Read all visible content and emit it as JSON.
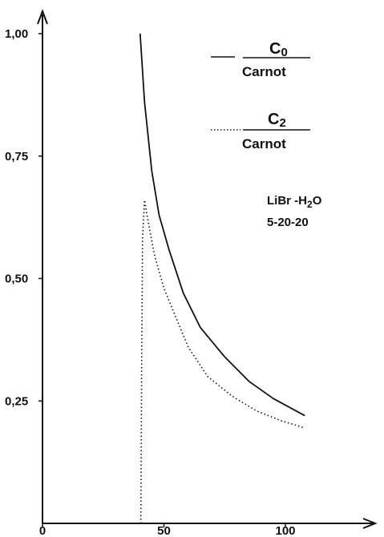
{
  "chart_data": {
    "type": "line",
    "title": "",
    "xlabel": "",
    "ylabel": "",
    "xlim": [
      0,
      110
    ],
    "ylim": [
      0,
      1.0
    ],
    "x_ticks": [
      {
        "value": 0,
        "label": "0"
      },
      {
        "value": 50,
        "label": "50"
      },
      {
        "value": 100,
        "label": "100"
      }
    ],
    "y_ticks": [
      {
        "value": 0.25,
        "label": "0,25"
      },
      {
        "value": 0.5,
        "label": "0,50"
      },
      {
        "value": 0.75,
        "label": "0,75"
      },
      {
        "value": 1.0,
        "label": "1,00"
      }
    ],
    "grid": false,
    "series": [
      {
        "name": "C0/Carnot",
        "style": "solid",
        "points": [
          [
            40.2,
            1.0
          ],
          [
            42,
            0.86
          ],
          [
            45,
            0.72
          ],
          [
            48,
            0.63
          ],
          [
            52,
            0.56
          ],
          [
            58,
            0.47
          ],
          [
            65,
            0.4
          ],
          [
            75,
            0.34
          ],
          [
            85,
            0.29
          ],
          [
            95,
            0.255
          ],
          [
            108,
            0.22
          ]
        ]
      },
      {
        "name": "C2/Carnot",
        "style": "dotted",
        "points": [
          [
            40.5,
            0.0
          ],
          [
            40.8,
            0.3
          ],
          [
            41.2,
            0.58
          ],
          [
            42.0,
            0.66
          ],
          [
            43,
            0.63
          ],
          [
            46,
            0.55
          ],
          [
            50,
            0.48
          ],
          [
            55,
            0.42
          ],
          [
            60,
            0.36
          ],
          [
            68,
            0.3
          ],
          [
            78,
            0.26
          ],
          [
            88,
            0.23
          ],
          [
            98,
            0.21
          ],
          [
            108,
            0.195
          ]
        ]
      }
    ],
    "legend": {
      "placement": "top-right",
      "entries": [
        {
          "line": "solid",
          "numerator": "C",
          "sub": "0",
          "denominator": "Carnot"
        },
        {
          "line": "dotted",
          "numerator": "C",
          "sub": "2",
          "denominator": "Carnot"
        }
      ]
    },
    "annotations": [
      {
        "main": "LiBr -H",
        "sub": "2",
        "tail": "O"
      },
      {
        "main": "5-20-20"
      }
    ]
  }
}
